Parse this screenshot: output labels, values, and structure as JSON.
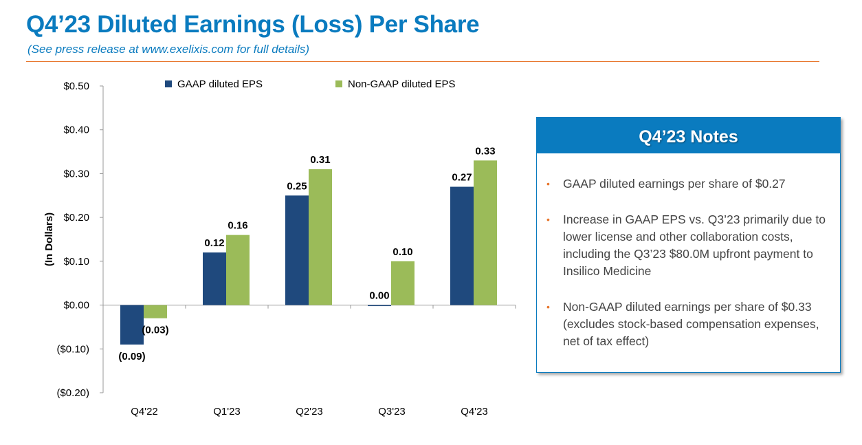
{
  "header": {
    "title": "Q4’23 Diluted Earnings (Loss) Per Share",
    "subtitle": "(See press release at www.exelixis.com for full details)"
  },
  "chart_data": {
    "type": "bar",
    "categories": [
      "Q4'22",
      "Q1'23",
      "Q2'23",
      "Q3'23",
      "Q4'23"
    ],
    "series": [
      {
        "name": "GAAP diluted EPS",
        "color": "#1f497d",
        "values": [
          -0.09,
          0.12,
          0.25,
          0.0,
          0.27
        ],
        "labels": [
          "(0.09)",
          "0.12",
          "0.25",
          "0.00",
          "0.27"
        ]
      },
      {
        "name": "Non-GAAP diluted EPS",
        "color": "#9bbb59",
        "values": [
          -0.03,
          0.16,
          0.31,
          0.1,
          0.33
        ],
        "labels": [
          "(0.03)",
          "0.16",
          "0.31",
          "0.10",
          "0.33"
        ]
      }
    ],
    "ylabel": "(In Dollars)",
    "ylim": [
      -0.2,
      0.5
    ],
    "yticks": [
      0.5,
      0.4,
      0.3,
      0.2,
      0.1,
      0.0,
      -0.1,
      -0.2
    ],
    "ytick_labels": [
      "$0.50",
      "$0.40",
      "$0.30",
      "$0.20",
      "$0.10",
      "$0.00",
      "($0.10)",
      "($0.20)"
    ],
    "legend": "top",
    "grid": false
  },
  "notes": {
    "title": "Q4’23 Notes",
    "bullet_color": "#e8762c",
    "items": [
      "GAAP diluted earnings per share of $0.27",
      "Increase in GAAP EPS vs. Q3’23 primarily due to lower license and other collaboration costs, including the Q3’23 $80.0M upfront payment to Insilico Medicine",
      "Non-GAAP diluted earnings per share of $0.33 (excludes stock-based compensation expenses, net of tax effect)"
    ]
  }
}
